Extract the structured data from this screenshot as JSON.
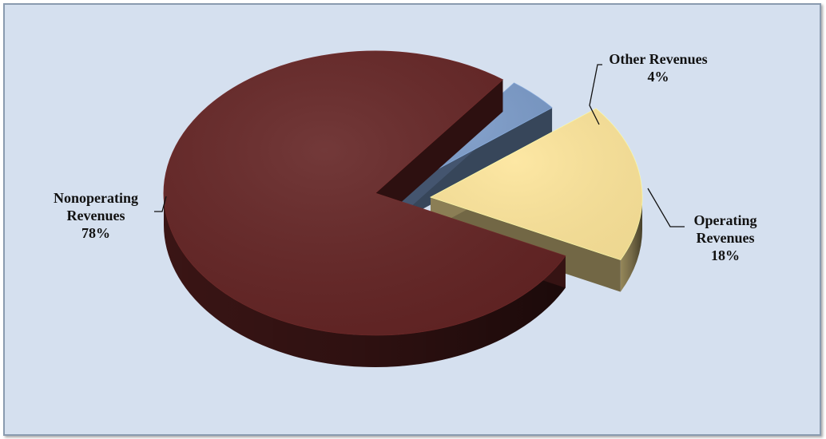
{
  "chart_data": {
    "type": "pie",
    "title": "",
    "slices": [
      {
        "label_lines": [
          "Other Revenues"
        ],
        "value": 4,
        "percent_text": "4%",
        "color": "#7b9bc9"
      },
      {
        "label_lines": [
          "Operating",
          "Revenues"
        ],
        "value": 18,
        "percent_text": "18%",
        "color": "#fde59a"
      },
      {
        "label_lines": [
          "Nonoperating",
          "Revenues"
        ],
        "value": 78,
        "percent_text": "78%",
        "color": "#632323"
      }
    ],
    "legend": "none",
    "style": "3d-exploded",
    "colors": {
      "background": "#d5e0ef",
      "border": "#8a9bb0",
      "leader_line": "#111111"
    }
  }
}
